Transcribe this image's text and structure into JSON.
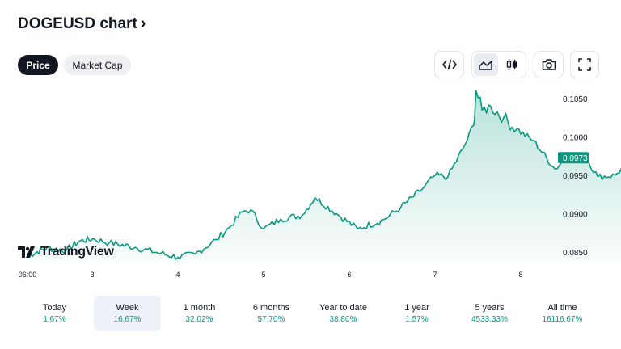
{
  "header": {
    "title": "DOGEUSD chart",
    "chevron": "›"
  },
  "tabs": [
    {
      "label": "Price",
      "selected": true
    },
    {
      "label": "Market Cap",
      "selected": false
    }
  ],
  "toolbar": {
    "embed_icon": "code-icon",
    "area_icon": "area-chart-icon",
    "candles_icon": "candlestick-icon",
    "snapshot_icon": "camera-icon",
    "fullscreen_icon": "fullscreen-icon"
  },
  "logo": {
    "text": "TradingView"
  },
  "colors": {
    "line": "#089981",
    "fill_top": "#089981",
    "price_badge": "#089981",
    "text": "#131722"
  },
  "chart_data": {
    "type": "area",
    "symbol": "DOGEUSD",
    "x_ticks": [
      "06:00",
      "3",
      "4",
      "5",
      "6",
      "7",
      "8"
    ],
    "y_ticks": [
      "0.1050",
      "0.1000",
      "0.0950",
      "0.0900",
      "0.0850"
    ],
    "ylim": [
      0.0835,
      0.1065
    ],
    "last_price": "0.0973",
    "anchor_series": [
      [
        0.0,
        0.0845
      ],
      [
        0.3,
        0.0855
      ],
      [
        0.6,
        0.0852
      ],
      [
        0.8,
        0.0864
      ],
      [
        1.0,
        0.0867
      ],
      [
        1.2,
        0.0862
      ],
      [
        1.5,
        0.0856
      ],
      [
        1.8,
        0.0848
      ],
      [
        2.0,
        0.0843
      ],
      [
        2.2,
        0.0847
      ],
      [
        2.45,
        0.0866
      ],
      [
        2.6,
        0.0882
      ],
      [
        2.75,
        0.0902
      ],
      [
        2.85,
        0.0905
      ],
      [
        3.0,
        0.088
      ],
      [
        3.2,
        0.0893
      ],
      [
        3.45,
        0.0898
      ],
      [
        3.6,
        0.0921
      ],
      [
        3.85,
        0.09
      ],
      [
        4.1,
        0.088
      ],
      [
        4.4,
        0.0892
      ],
      [
        4.6,
        0.0908
      ],
      [
        4.85,
        0.0932
      ],
      [
        5.0,
        0.095
      ],
      [
        5.15,
        0.0948
      ],
      [
        5.35,
        0.099
      ],
      [
        5.45,
        0.1015
      ],
      [
        5.48,
        0.106
      ],
      [
        5.55,
        0.1035
      ],
      [
        5.65,
        0.104
      ],
      [
        5.8,
        0.1025
      ],
      [
        5.95,
        0.101
      ],
      [
        6.15,
        0.0995
      ],
      [
        6.4,
        0.0958
      ],
      [
        6.55,
        0.0975
      ],
      [
        6.75,
        0.0975
      ],
      [
        6.9,
        0.0948
      ],
      [
        7.1,
        0.095
      ],
      [
        7.25,
        0.0966
      ],
      [
        7.4,
        0.095
      ],
      [
        7.55,
        0.0935
      ],
      [
        7.7,
        0.0958
      ],
      [
        7.95,
        0.0965
      ],
      [
        8.1,
        0.0972
      ],
      [
        8.15,
        0.0973
      ]
    ]
  },
  "periods": [
    {
      "label": "Today",
      "value": "1.67%",
      "selected": false
    },
    {
      "label": "Week",
      "value": "16.67%",
      "selected": true
    },
    {
      "label": "1 month",
      "value": "32.02%",
      "selected": false
    },
    {
      "label": "6 months",
      "value": "57.70%",
      "selected": false
    },
    {
      "label": "Year to date",
      "value": "38.80%",
      "selected": false
    },
    {
      "label": "1 year",
      "value": "1.57%",
      "selected": false
    },
    {
      "label": "5 years",
      "value": "4533.33%",
      "selected": false
    },
    {
      "label": "All time",
      "value": "16116.67%",
      "selected": false
    }
  ]
}
